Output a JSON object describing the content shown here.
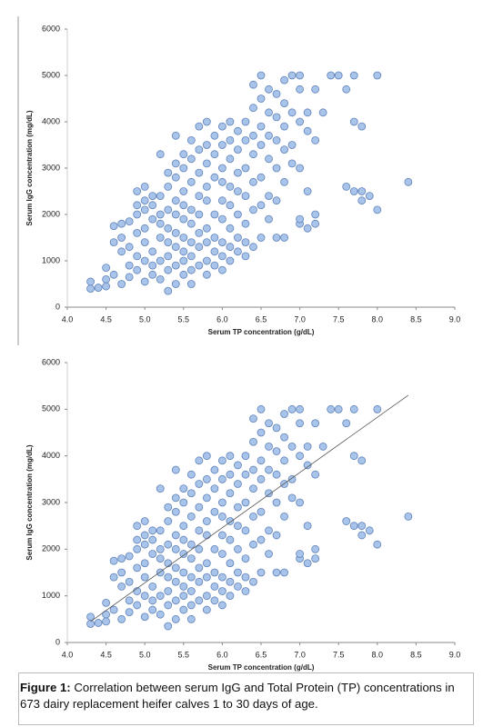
{
  "chart_data": [
    {
      "type": "scatter",
      "xlabel": "Serum TP concentration (g/dL)",
      "ylabel": "Serum IgG concentration (mg/dL)",
      "color": "#a9c4eb",
      "xlim": [
        4,
        9
      ],
      "xticks": [
        {
          "value": 4,
          "label": "4.0"
        },
        4.5,
        {
          "value": 5,
          "label": "5.0"
        },
        5.5,
        {
          "value": 6,
          "label": "6.0"
        },
        6.5,
        {
          "value": 7,
          "label": "7.0"
        },
        7.5,
        {
          "value": 8,
          "label": "8.0"
        },
        8.5,
        {
          "value": 9,
          "label": "9.0"
        }
      ],
      "ylim": [
        0,
        6000
      ],
      "yticks": [
        0,
        1000,
        2000,
        3000,
        4000,
        5000,
        6000
      ],
      "x": [
        4.3,
        4.3,
        4.4,
        4.5,
        4.5,
        4.5,
        4.6,
        4.6,
        4.6,
        4.7,
        4.7,
        4.7,
        4.7,
        4.8,
        4.8,
        4.8,
        4.8,
        4.9,
        4.9,
        4.9,
        4.9,
        4.9,
        4.9,
        5.0,
        5.0,
        5.0,
        5.0,
        5.0,
        5.0,
        5.0,
        5.1,
        5.1,
        5.1,
        5.1,
        5.1,
        5.1,
        5.2,
        5.2,
        5.2,
        5.2,
        5.2,
        5.2,
        5.2,
        5.3,
        5.3,
        5.3,
        5.3,
        5.3,
        5.3,
        5.3,
        5.3,
        5.4,
        5.4,
        5.4,
        5.4,
        5.4,
        5.4,
        5.4,
        5.4,
        5.4,
        5.5,
        5.5,
        5.5,
        5.5,
        5.5,
        5.5,
        5.5,
        5.5,
        5.5,
        5.6,
        5.6,
        5.6,
        5.6,
        5.6,
        5.6,
        5.6,
        5.6,
        5.6,
        5.7,
        5.7,
        5.7,
        5.7,
        5.7,
        5.7,
        5.7,
        5.7,
        5.8,
        5.8,
        5.8,
        5.8,
        5.8,
        5.8,
        5.8,
        5.8,
        5.8,
        5.9,
        5.9,
        5.9,
        5.9,
        5.9,
        5.9,
        5.9,
        6.0,
        6.0,
        6.0,
        6.0,
        6.0,
        6.0,
        6.0,
        6.0,
        6.0,
        6.1,
        6.1,
        6.1,
        6.1,
        6.1,
        6.1,
        6.1,
        6.1,
        6.2,
        6.2,
        6.2,
        6.2,
        6.2,
        6.2,
        6.2,
        6.3,
        6.3,
        6.3,
        6.3,
        6.3,
        6.3,
        6.3,
        6.4,
        6.4,
        6.4,
        6.4,
        6.4,
        6.4,
        6.4,
        6.5,
        6.5,
        6.5,
        6.5,
        6.5,
        6.5,
        6.5,
        6.6,
        6.6,
        6.6,
        6.6,
        6.6,
        6.6,
        6.7,
        6.7,
        6.7,
        6.7,
        6.7,
        6.7,
        6.8,
        6.8,
        6.8,
        6.8,
        6.8,
        6.8,
        6.9,
        6.9,
        6.9,
        6.9,
        7.0,
        7.0,
        7.0,
        7.0,
        7.0,
        7.0,
        7.1,
        7.1,
        7.1,
        7.1,
        7.2,
        7.2,
        7.2,
        7.2,
        7.3,
        7.4,
        7.5,
        7.6,
        7.6,
        7.7,
        7.7,
        7.7,
        7.8,
        7.8,
        7.8,
        7.9,
        8.0,
        8.0,
        8.4
      ],
      "values": [
        400,
        550,
        420,
        600,
        850,
        450,
        700,
        1400,
        1750,
        500,
        1200,
        1500,
        1800,
        650,
        900,
        1300,
        1850,
        800,
        1100,
        1600,
        2000,
        2200,
        2500,
        550,
        1000,
        1400,
        1700,
        2100,
        2300,
        2600,
        700,
        900,
        1200,
        1900,
        2200,
        2400,
        600,
        1000,
        1500,
        1800,
        2000,
        2400,
        3300,
        350,
        800,
        1100,
        1400,
        1700,
        2100,
        2600,
        2900,
        500,
        900,
        1300,
        1600,
        2000,
        2300,
        2800,
        3100,
        3700,
        700,
        1000,
        1200,
        1500,
        1900,
        2200,
        2500,
        3000,
        3300,
        500,
        800,
        1100,
        1400,
        1800,
        2100,
        2700,
        3200,
        3600,
        900,
        1300,
        1600,
        2000,
        2400,
        2900,
        3400,
        3900,
        700,
        1000,
        1400,
        1700,
        2300,
        2600,
        3100,
        3500,
        4000,
        900,
        1200,
        1500,
        2000,
        2800,
        3300,
        3700,
        800,
        1100,
        1400,
        1900,
        2300,
        2700,
        3000,
        3500,
        3900,
        1000,
        1300,
        1700,
        2200,
        2600,
        3200,
        3600,
        4000,
        1200,
        1500,
        2000,
        2500,
        2900,
        3400,
        3800,
        1100,
        1400,
        1800,
        2400,
        3000,
        3600,
        4000,
        1300,
        2100,
        2700,
        3300,
        3700,
        4300,
        4800,
        1500,
        2200,
        2800,
        3500,
        3900,
        4500,
        5000,
        1900,
        2400,
        3200,
        3700,
        4200,
        4700,
        1500,
        2300,
        3000,
        3600,
        4100,
        4600,
        1500,
        2700,
        3400,
        3900,
        4400,
        4900,
        3100,
        3500,
        4200,
        5000,
        1800,
        1900,
        3000,
        4000,
        4700,
        5000,
        1700,
        2500,
        3800,
        4200,
        1800,
        2000,
        3600,
        4700,
        4200,
        5000,
        5000,
        4700,
        2600,
        2500,
        4000,
        5000,
        2300,
        2500,
        3900,
        2400,
        2100,
        5000,
        2700
      ]
    },
    {
      "type": "scatter",
      "xlabel": "Serum TP concentration (g/dL)",
      "ylabel": "Serum IgG concentration (mg/dL)",
      "color": "#a9c4eb",
      "xlim": [
        4,
        9
      ],
      "xticks": [
        {
          "value": 4,
          "label": "4.0"
        },
        4.5,
        {
          "value": 5,
          "label": "5.0"
        },
        5.5,
        {
          "value": 6,
          "label": "6.0"
        },
        6.5,
        {
          "value": 7,
          "label": "7.0"
        },
        7.5,
        {
          "value": 8,
          "label": "8.0"
        },
        8.5,
        {
          "value": 9,
          "label": "9.0"
        }
      ],
      "ylim": [
        0,
        6000
      ],
      "yticks": [
        0,
        1000,
        2000,
        3000,
        4000,
        5000,
        6000
      ],
      "x": [
        4.3,
        4.3,
        4.4,
        4.5,
        4.5,
        4.5,
        4.6,
        4.6,
        4.6,
        4.7,
        4.7,
        4.7,
        4.7,
        4.8,
        4.8,
        4.8,
        4.8,
        4.9,
        4.9,
        4.9,
        4.9,
        4.9,
        4.9,
        5.0,
        5.0,
        5.0,
        5.0,
        5.0,
        5.0,
        5.0,
        5.1,
        5.1,
        5.1,
        5.1,
        5.1,
        5.1,
        5.2,
        5.2,
        5.2,
        5.2,
        5.2,
        5.2,
        5.2,
        5.3,
        5.3,
        5.3,
        5.3,
        5.3,
        5.3,
        5.3,
        5.3,
        5.4,
        5.4,
        5.4,
        5.4,
        5.4,
        5.4,
        5.4,
        5.4,
        5.4,
        5.5,
        5.5,
        5.5,
        5.5,
        5.5,
        5.5,
        5.5,
        5.5,
        5.5,
        5.6,
        5.6,
        5.6,
        5.6,
        5.6,
        5.6,
        5.6,
        5.6,
        5.6,
        5.7,
        5.7,
        5.7,
        5.7,
        5.7,
        5.7,
        5.7,
        5.7,
        5.8,
        5.8,
        5.8,
        5.8,
        5.8,
        5.8,
        5.8,
        5.8,
        5.8,
        5.9,
        5.9,
        5.9,
        5.9,
        5.9,
        5.9,
        5.9,
        6.0,
        6.0,
        6.0,
        6.0,
        6.0,
        6.0,
        6.0,
        6.0,
        6.0,
        6.1,
        6.1,
        6.1,
        6.1,
        6.1,
        6.1,
        6.1,
        6.1,
        6.2,
        6.2,
        6.2,
        6.2,
        6.2,
        6.2,
        6.2,
        6.3,
        6.3,
        6.3,
        6.3,
        6.3,
        6.3,
        6.3,
        6.4,
        6.4,
        6.4,
        6.4,
        6.4,
        6.4,
        6.4,
        6.5,
        6.5,
        6.5,
        6.5,
        6.5,
        6.5,
        6.5,
        6.6,
        6.6,
        6.6,
        6.6,
        6.6,
        6.6,
        6.7,
        6.7,
        6.7,
        6.7,
        6.7,
        6.7,
        6.8,
        6.8,
        6.8,
        6.8,
        6.8,
        6.8,
        6.9,
        6.9,
        6.9,
        6.9,
        7.0,
        7.0,
        7.0,
        7.0,
        7.0,
        7.0,
        7.1,
        7.1,
        7.1,
        7.1,
        7.2,
        7.2,
        7.2,
        7.2,
        7.3,
        7.4,
        7.5,
        7.6,
        7.6,
        7.7,
        7.7,
        7.7,
        7.8,
        7.8,
        7.8,
        7.9,
        8.0,
        8.0,
        8.4
      ],
      "values": [
        400,
        550,
        420,
        600,
        850,
        450,
        700,
        1400,
        1750,
        500,
        1200,
        1500,
        1800,
        650,
        900,
        1300,
        1850,
        800,
        1100,
        1600,
        2000,
        2200,
        2500,
        550,
        1000,
        1400,
        1700,
        2100,
        2300,
        2600,
        700,
        900,
        1200,
        1900,
        2200,
        2400,
        600,
        1000,
        1500,
        1800,
        2000,
        2400,
        3300,
        350,
        800,
        1100,
        1400,
        1700,
        2100,
        2600,
        2900,
        500,
        900,
        1300,
        1600,
        2000,
        2300,
        2800,
        3100,
        3700,
        700,
        1000,
        1200,
        1500,
        1900,
        2200,
        2500,
        3000,
        3300,
        500,
        800,
        1100,
        1400,
        1800,
        2100,
        2700,
        3200,
        3600,
        900,
        1300,
        1600,
        2000,
        2400,
        2900,
        3400,
        3900,
        700,
        1000,
        1400,
        1700,
        2300,
        2600,
        3100,
        3500,
        4000,
        900,
        1200,
        1500,
        2000,
        2800,
        3300,
        3700,
        800,
        1100,
        1400,
        1900,
        2300,
        2700,
        3000,
        3500,
        3900,
        1000,
        1300,
        1700,
        2200,
        2600,
        3200,
        3600,
        4000,
        1200,
        1500,
        2000,
        2500,
        2900,
        3400,
        3800,
        1100,
        1400,
        1800,
        2400,
        3000,
        3600,
        4000,
        1300,
        2100,
        2700,
        3300,
        3700,
        4300,
        4800,
        1500,
        2200,
        2800,
        3500,
        3900,
        4500,
        5000,
        1900,
        2400,
        3200,
        3700,
        4200,
        4700,
        1500,
        2300,
        3000,
        3600,
        4100,
        4600,
        1500,
        2700,
        3400,
        3900,
        4400,
        4900,
        3100,
        3500,
        4200,
        5000,
        1800,
        1900,
        3000,
        4000,
        4700,
        5000,
        1700,
        2500,
        3800,
        4200,
        1800,
        2000,
        3600,
        4700,
        4200,
        5000,
        5000,
        4700,
        2600,
        2500,
        4000,
        5000,
        2300,
        2500,
        3900,
        2400,
        2100,
        5000,
        2700
      ],
      "trendline": {
        "x": [
          4.3,
          8.4
        ],
        "y": [
          450,
          5300
        ],
        "color": "#555555"
      }
    }
  ],
  "caption": {
    "label": "Figure 1:",
    "text": "Correlation between serum IgG and Total Protein (TP) concentrations in 673 dairy replacement heifer calves 1 to 30 days of age."
  }
}
